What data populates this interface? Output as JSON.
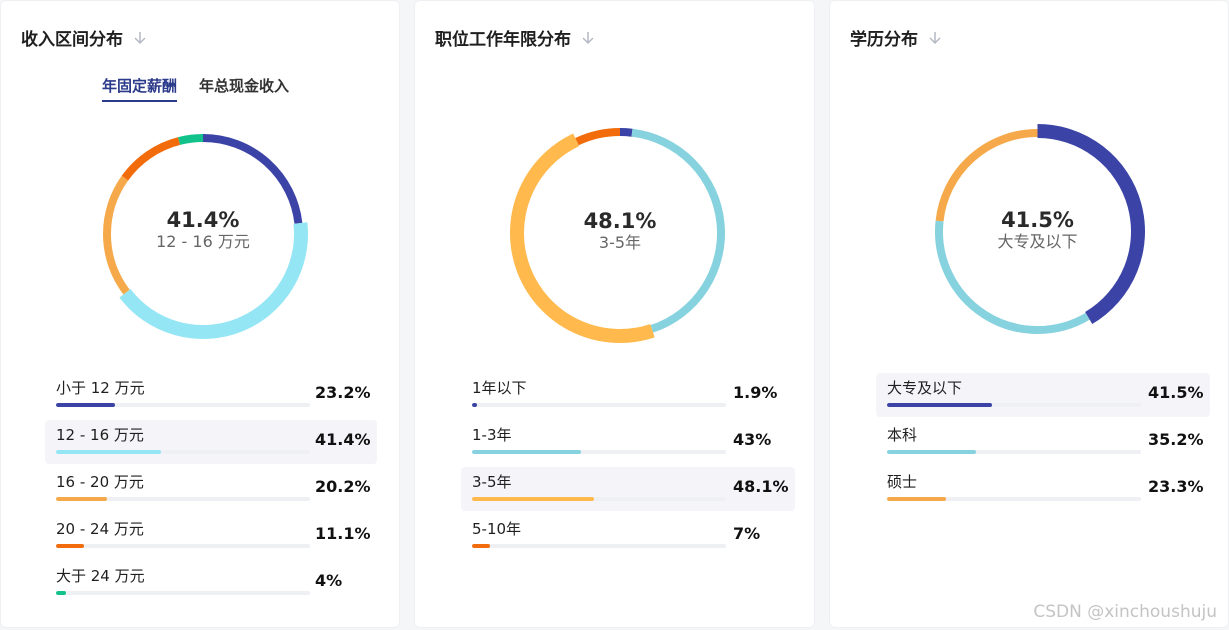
{
  "colors": {
    "navy": "#3b44a6",
    "light_cyan": "#95e6f5",
    "cyan": "#86d2de",
    "orange": "#f5a94a",
    "yellow": "#ffb94d",
    "red_orange": "#f26c0c",
    "green": "#12c28b"
  },
  "icons": {
    "sort": "arrow-down-icon"
  },
  "cards": [
    {
      "title": "收入区间分布",
      "tabs": [
        {
          "label": "年固定薪酬",
          "active": true
        },
        {
          "label": "年总现金收入",
          "active": false
        }
      ],
      "center_value": "41.4%",
      "center_label": "12 - 16 万元",
      "legend": [
        {
          "label": "小于 12 万元",
          "pct": "23.2%"
        },
        {
          "label": "12 - 16 万元",
          "pct": "41.4%"
        },
        {
          "label": "16 - 20 万元",
          "pct": "20.2%"
        },
        {
          "label": "20 - 24 万元",
          "pct": "11.1%"
        },
        {
          "label": "大于 24 万元",
          "pct": "4%"
        }
      ]
    },
    {
      "title": "职位工作年限分布",
      "center_value": "48.1%",
      "center_label": "3-5年",
      "legend": [
        {
          "label": "1年以下",
          "pct": "1.9%"
        },
        {
          "label": "1-3年",
          "pct": "43%"
        },
        {
          "label": "3-5年",
          "pct": "48.1%"
        },
        {
          "label": "5-10年",
          "pct": "7%"
        }
      ]
    },
    {
      "title": "学历分布",
      "center_value": "41.5%",
      "center_label": "大专及以下",
      "legend": [
        {
          "label": "大专及以下",
          "pct": "41.5%"
        },
        {
          "label": "本科",
          "pct": "35.2%"
        },
        {
          "label": "硕士",
          "pct": "23.3%"
        }
      ]
    }
  ],
  "chart_data": [
    {
      "type": "pie",
      "title": "收入区间分布",
      "categories": [
        "小于 12 万元",
        "12 - 16 万元",
        "16 - 20 万元",
        "20 - 24 万元",
        "大于 24 万元"
      ],
      "values": [
        23.2,
        41.4,
        20.2,
        11.1,
        4
      ],
      "colors": [
        "#3b44a6",
        "#95e6f5",
        "#f5a94a",
        "#f26c0c",
        "#12c28b"
      ],
      "highlight_index": 1
    },
    {
      "type": "pie",
      "title": "职位工作年限分布",
      "categories": [
        "1年以下",
        "1-3年",
        "3-5年",
        "5-10年"
      ],
      "values": [
        1.9,
        43,
        48.1,
        7
      ],
      "colors": [
        "#3b44a6",
        "#86d2de",
        "#ffb94d",
        "#f26c0c"
      ],
      "highlight_index": 2
    },
    {
      "type": "pie",
      "title": "学历分布",
      "categories": [
        "大专及以下",
        "本科",
        "硕士"
      ],
      "values": [
        41.5,
        35.2,
        23.3
      ],
      "colors": [
        "#3b44a6",
        "#86d2de",
        "#f5a94a"
      ],
      "highlight_index": 0
    }
  ],
  "watermark": "CSDN @xinchoushuju"
}
